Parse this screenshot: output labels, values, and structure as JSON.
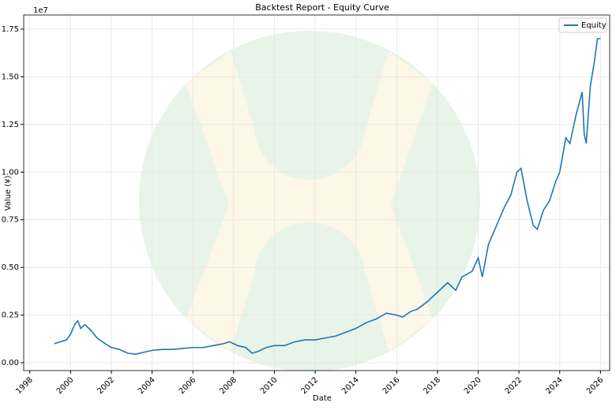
{
  "chart_data": {
    "type": "line",
    "title": "Backtest Report - Equity Curve",
    "x_label": "Date",
    "y_label": "Value (¥)",
    "y_offset_label": "1e7",
    "x": [
      1999.2,
      1999.5,
      1999.8,
      2000.0,
      2000.2,
      2000.35,
      2000.5,
      2000.7,
      2001.0,
      2001.3,
      2001.7,
      2002.0,
      2002.4,
      2002.8,
      2003.2,
      2003.6,
      2004.0,
      2004.5,
      2005.0,
      2005.5,
      2006.0,
      2006.5,
      2007.0,
      2007.5,
      2007.8,
      2008.2,
      2008.6,
      2008.9,
      2009.2,
      2009.6,
      2010.0,
      2010.5,
      2011.0,
      2011.5,
      2012.0,
      2012.5,
      2013.0,
      2013.5,
      2014.0,
      2014.5,
      2015.0,
      2015.5,
      2016.0,
      2016.3,
      2016.7,
      2017.0,
      2017.5,
      2018.0,
      2018.5,
      2018.9,
      2019.2,
      2019.7,
      2020.0,
      2020.2,
      2020.5,
      2020.9,
      2021.3,
      2021.6,
      2021.9,
      2022.1,
      2022.4,
      2022.7,
      2022.9,
      2023.2,
      2023.5,
      2023.8,
      2024.0,
      2024.3,
      2024.5,
      2024.8,
      2025.1,
      2025.2,
      2025.3,
      2025.5,
      2025.7,
      2025.85,
      2026.0
    ],
    "series": [
      {
        "name": "Equity",
        "color": "#1f77b4",
        "values": [
          0.1,
          0.11,
          0.12,
          0.15,
          0.2,
          0.22,
          0.18,
          0.2,
          0.17,
          0.13,
          0.1,
          0.08,
          0.07,
          0.05,
          0.045,
          0.055,
          0.065,
          0.07,
          0.07,
          0.075,
          0.08,
          0.08,
          0.09,
          0.1,
          0.11,
          0.09,
          0.08,
          0.05,
          0.06,
          0.08,
          0.09,
          0.09,
          0.11,
          0.12,
          0.12,
          0.13,
          0.14,
          0.16,
          0.18,
          0.21,
          0.23,
          0.26,
          0.25,
          0.24,
          0.27,
          0.28,
          0.32,
          0.37,
          0.42,
          0.38,
          0.45,
          0.48,
          0.55,
          0.45,
          0.62,
          0.72,
          0.82,
          0.88,
          1.0,
          1.02,
          0.85,
          0.72,
          0.7,
          0.8,
          0.85,
          0.95,
          1.0,
          1.18,
          1.15,
          1.3,
          1.42,
          1.2,
          1.15,
          1.45,
          1.58,
          1.7,
          1.7
        ]
      }
    ],
    "xlim": [
      1997.7,
      2026.45
    ],
    "xticks": [
      1998,
      2000,
      2002,
      2004,
      2006,
      2008,
      2010,
      2012,
      2014,
      2016,
      2018,
      2020,
      2022,
      2024,
      2026
    ],
    "ylim": [
      -0.041,
      1.824
    ],
    "yticks": [
      {
        "value": 0,
        "label": "0.00"
      },
      0.25,
      {
        "value": 0.5,
        "label": "0.50"
      },
      0.75,
      {
        "value": 1,
        "label": "1.00"
      },
      1.25,
      {
        "value": 1.5,
        "label": "1.50"
      },
      1.75
    ],
    "grid": true,
    "legend": "upper right"
  }
}
